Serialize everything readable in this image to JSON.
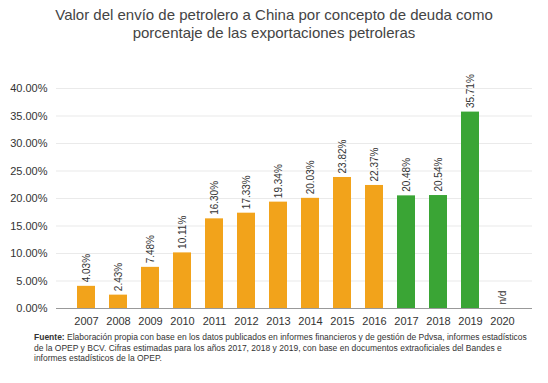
{
  "chart_data": {
    "type": "bar",
    "title": "Valor del envío de petrolero a China por concepto de deuda como porcentaje de las exportaciones petroleras",
    "categories": [
      "2007",
      "2008",
      "2009",
      "2010",
      "2011",
      "2012",
      "2013",
      "2014",
      "2015",
      "2016",
      "2017",
      "2018",
      "2019",
      "2020"
    ],
    "values": [
      4.03,
      2.43,
      7.48,
      10.11,
      16.3,
      17.33,
      19.34,
      20.03,
      23.82,
      22.37,
      20.48,
      20.54,
      35.71,
      null
    ],
    "value_labels": [
      "4.03%",
      "2.43%",
      "7.48%",
      "10.11%",
      "16.30%",
      "17.33%",
      "19.34%",
      "20.03%",
      "23.82%",
      "22.37%",
      "20.48%",
      "20.54%",
      "35.71%",
      "n/d"
    ],
    "colors": [
      "#f2a31b",
      "#f2a31b",
      "#f2a31b",
      "#f2a31b",
      "#f2a31b",
      "#f2a31b",
      "#f2a31b",
      "#f2a31b",
      "#f2a31b",
      "#f2a31b",
      "#3aa535",
      "#3aa535",
      "#3aa535",
      null
    ],
    "ylim": [
      0,
      40
    ],
    "yticks": [
      {
        "value": 0,
        "label": "0.00%"
      },
      {
        "value": 5,
        "label": "5.00%"
      },
      {
        "value": 10,
        "label": "10.00%"
      },
      {
        "value": 15,
        "label": "15.00%"
      },
      {
        "value": 20,
        "label": "20.00%"
      },
      {
        "value": 25,
        "label": "25.00%"
      },
      {
        "value": 30,
        "label": "30.00%"
      },
      {
        "value": 35,
        "label": "35.00%"
      },
      {
        "value": 40,
        "label": "40.00%"
      }
    ],
    "grid": true,
    "data_labels": true,
    "source_label": "Fuente:",
    "source": "Elaboración propia con base en los datos publicados en informes financieros y de gestión de Pdvsa, informes estadísticos de la OPEP y BCV. Cifras estimadas para los años 2017, 2018 y 2019, con base en documentos extraoficiales del Bandes e informes estadísticos de la OPEP."
  }
}
